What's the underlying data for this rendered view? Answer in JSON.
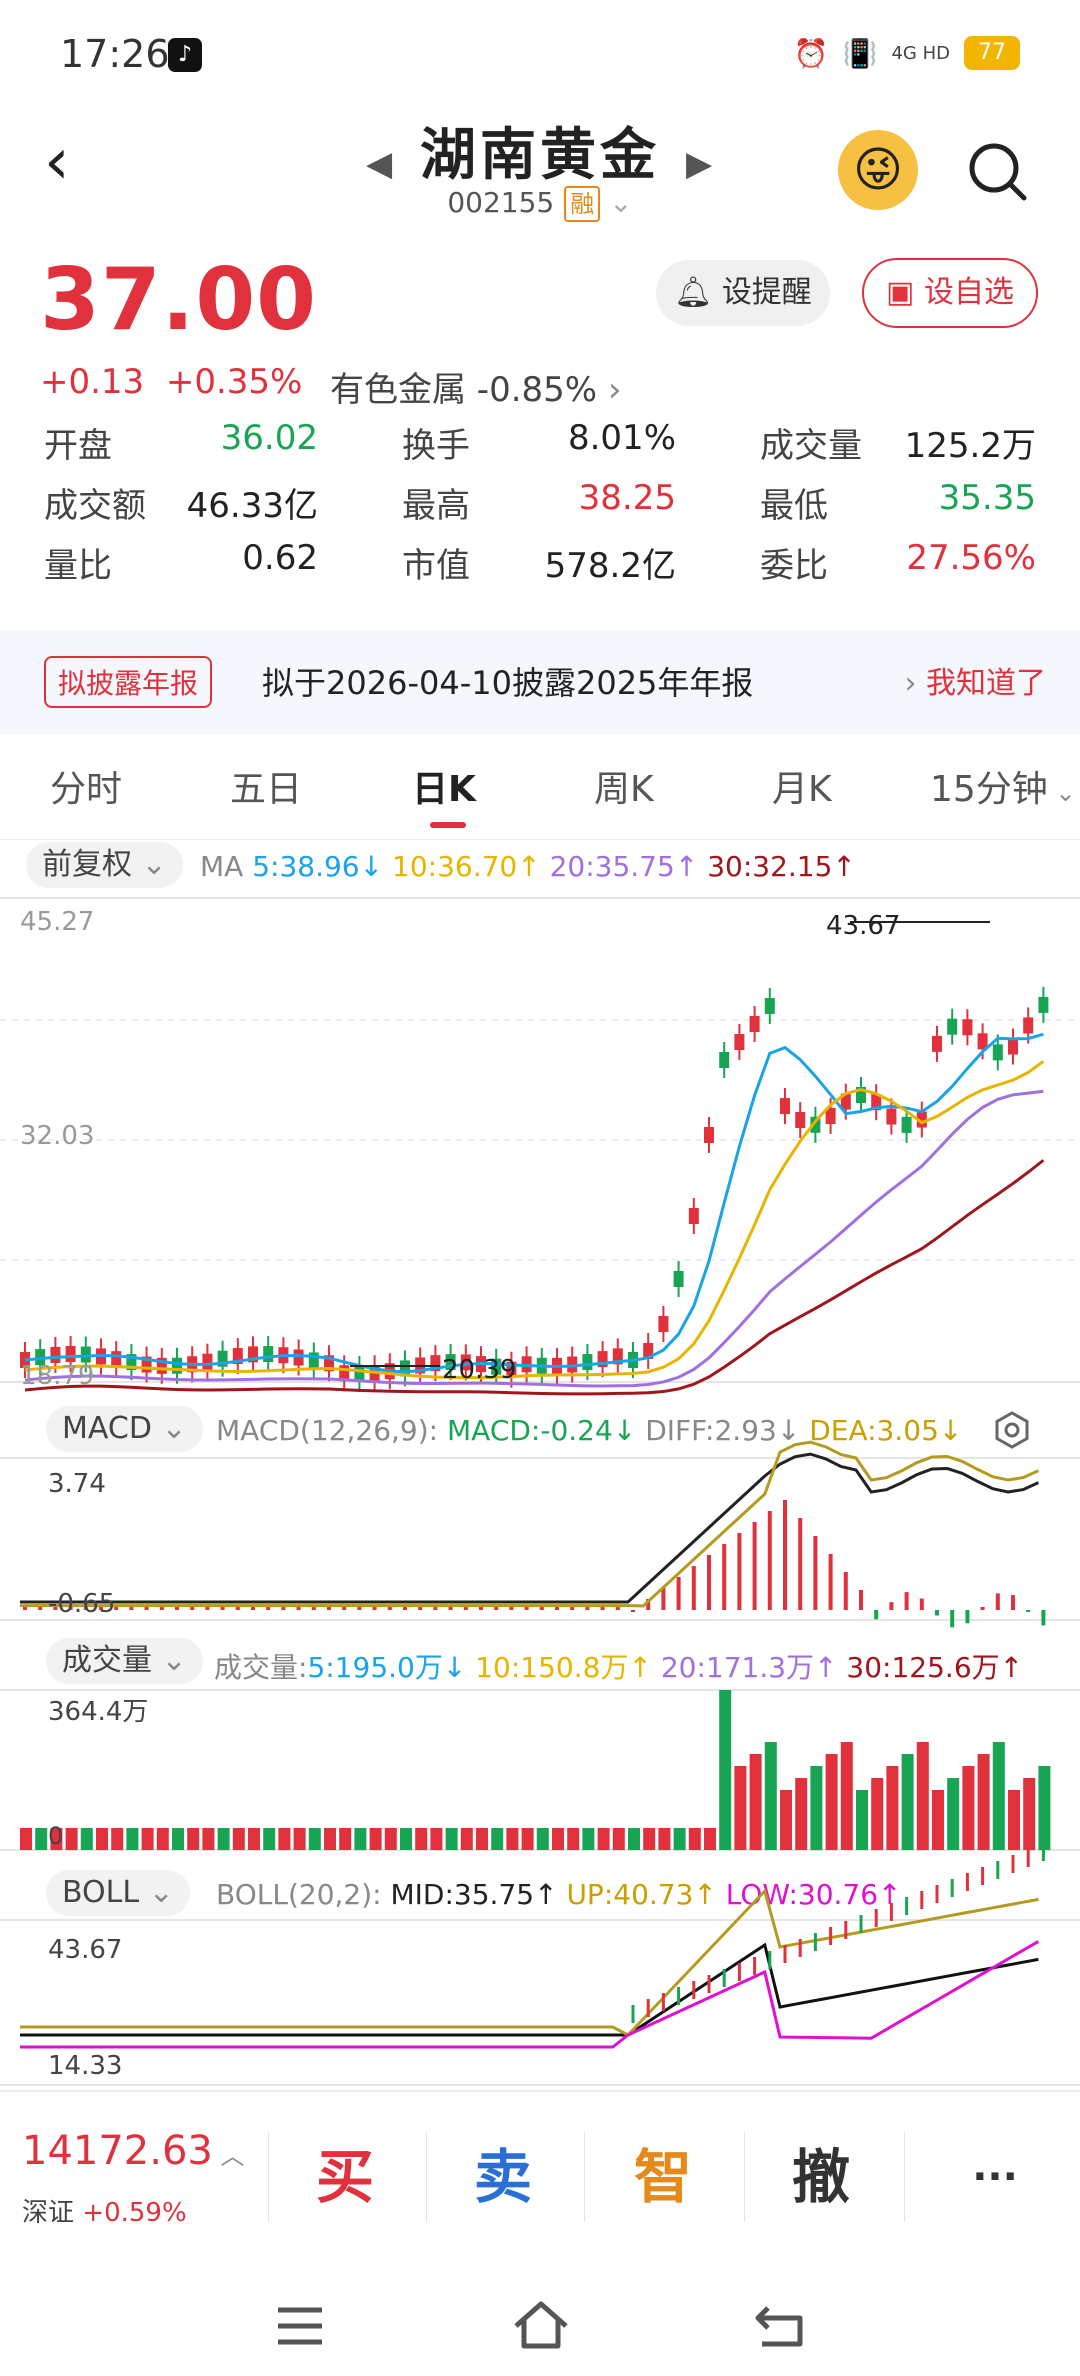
{
  "status": {
    "time": "17:26",
    "network": "4G HD",
    "battery": "77"
  },
  "header": {
    "name": "湖南黄金",
    "code": "002155",
    "badge": "融"
  },
  "quote": {
    "price": "37.00",
    "change": "+0.13",
    "pct": "+0.35%",
    "industry": "有色金属 -0.85%",
    "alert_btn": "设提醒",
    "fav_btn": "设自选"
  },
  "stats": [
    [
      {
        "l": "开盘",
        "v": "36.02",
        "c": "green"
      },
      {
        "l": "换手",
        "v": "8.01%",
        "c": "dark"
      },
      {
        "l": "成交量",
        "v": "125.2万",
        "c": "dark"
      }
    ],
    [
      {
        "l": "成交额",
        "v": "46.33亿",
        "c": "dark"
      },
      {
        "l": "最高",
        "v": "38.25",
        "c": "red"
      },
      {
        "l": "最低",
        "v": "35.35",
        "c": "green"
      }
    ],
    [
      {
        "l": "量比",
        "v": "0.62",
        "c": "dark"
      },
      {
        "l": "市值",
        "v": "578.2亿",
        "c": "dark"
      },
      {
        "l": "委比",
        "v": "27.56%",
        "c": "red"
      }
    ]
  ],
  "banner": {
    "tag": "拟披露年报",
    "text": "拟于2026-04-10披露2025年年报",
    "ok": "我知道了"
  },
  "tabs": [
    "分时",
    "五日",
    "日K",
    "周K",
    "月K",
    "15分钟"
  ],
  "kpanel": {
    "adjust": "前复权",
    "ma_label": "MA",
    "ma": [
      {
        "t": "5:38.96↓",
        "c": "#1aa3e8"
      },
      {
        "t": "10:36.70↑",
        "c": "#e8b400"
      },
      {
        "t": "20:35.75↑",
        "c": "#a070e0"
      },
      {
        "t": "30:32.15↑",
        "c": "#a0161c"
      }
    ],
    "ytop": "45.27",
    "ymid": "32.03",
    "ybot": "18.79",
    "hi": "43.67",
    "lo": "20.39"
  },
  "macd": {
    "name": "MACD",
    "params": "MACD(12,26,9):",
    "macd": "MACD:-0.24↓",
    "diff": "DIFF:2.93↓",
    "dea": "DEA:3.05↓",
    "ytop": "3.74",
    "ybot": "-0.65"
  },
  "vol": {
    "name": "成交量",
    "label": "成交量:",
    "ma": [
      {
        "t": "5:195.0万↓",
        "c": "#1aa3e8"
      },
      {
        "t": "10:150.8万↑",
        "c": "#e8b400"
      },
      {
        "t": "20:171.3万↑",
        "c": "#a070e0"
      },
      {
        "t": "30:125.6万↑",
        "c": "#a0161c"
      }
    ],
    "ytop": "364.4万",
    "ybot": "0"
  },
  "boll": {
    "name": "BOLL",
    "params": "BOLL(20,2):",
    "mid": "MID:35.75↑",
    "up": "UP:40.73↑",
    "low": "LOW:30.76↑",
    "ytop": "43.67",
    "ybot": "14.33"
  },
  "bottom": {
    "index_val": "14172.63",
    "index_name": "深证",
    "index_pct": "+0.59%",
    "buy": "买",
    "sell": "卖",
    "smart": "智",
    "cancel": "撤",
    "more": "···"
  }
}
